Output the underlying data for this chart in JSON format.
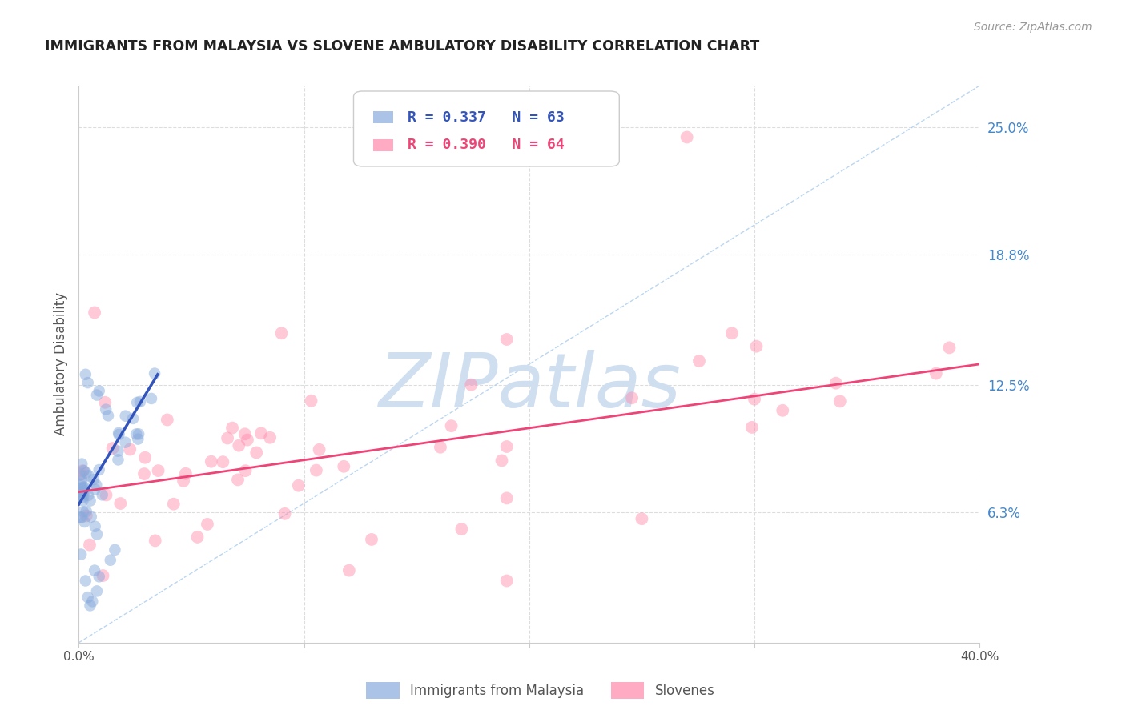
{
  "title": "IMMIGRANTS FROM MALAYSIA VS SLOVENE AMBULATORY DISABILITY CORRELATION CHART",
  "source": "Source: ZipAtlas.com",
  "ylabel": "Ambulatory Disability",
  "xlim": [
    0.0,
    0.4
  ],
  "ylim": [
    0.0,
    0.27
  ],
  "ytick_positions": [
    0.063,
    0.125,
    0.188,
    0.25
  ],
  "ytick_labels": [
    "6.3%",
    "12.5%",
    "18.8%",
    "25.0%"
  ],
  "series1_name": "Immigrants from Malaysia",
  "series1_color": "#88AADD",
  "series1_line_color": "#3355BB",
  "series1_R": 0.337,
  "series1_N": 63,
  "series2_name": "Slovenes",
  "series2_color": "#FF88AA",
  "series2_line_color": "#EE4477",
  "series2_R": 0.39,
  "series2_N": 64,
  "watermark": "ZIPatlas",
  "watermark_color": "#D0DFF0",
  "background_color": "#FFFFFF",
  "grid_color": "#DDDDDD",
  "title_color": "#222222",
  "source_color": "#999999",
  "axis_label_color": "#555555",
  "right_tick_color": "#4488CC",
  "diag_line_color": "#AACCEE",
  "blue_line_x": [
    0.0,
    0.035
  ],
  "blue_line_y": [
    0.067,
    0.13
  ],
  "pink_line_x": [
    0.0,
    0.4
  ],
  "pink_line_y": [
    0.073,
    0.135
  ],
  "legend_R1": "R = 0.337",
  "legend_N1": "N = 63",
  "legend_R2": "R = 0.390",
  "legend_N2": "N = 64"
}
